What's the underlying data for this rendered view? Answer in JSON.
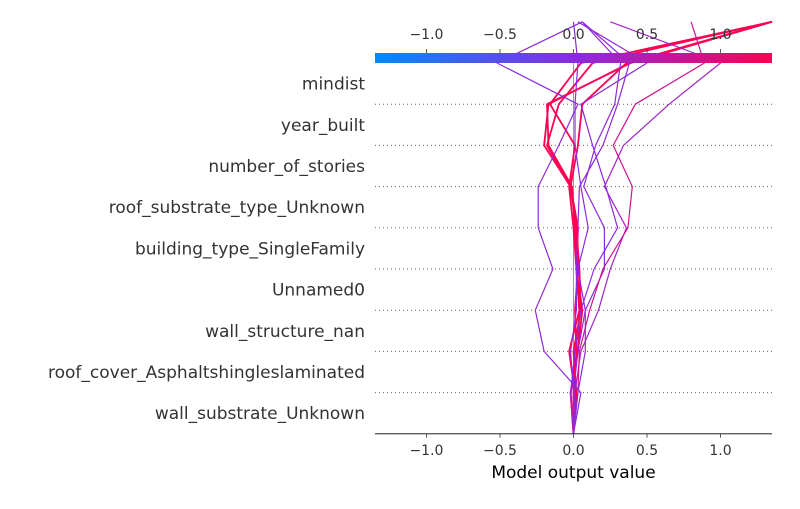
{
  "chart_data": {
    "type": "line",
    "title": "",
    "xlabel": "Model output value",
    "ylabel": "",
    "xlim": [
      -1.35,
      1.35
    ],
    "x_ticks": [
      -1.0,
      -0.5,
      0.0,
      0.5,
      1.0
    ],
    "x_tick_labels": [
      "−1.0",
      "−0.5",
      "0.0",
      "0.5",
      "1.0"
    ],
    "top_tick_labels": [
      "−1.0",
      "−0.5",
      "0.0",
      "0.5",
      "1.0"
    ],
    "colorbar": {
      "min": -1.35,
      "max": 1.35,
      "stops": [
        "#008bfb",
        "#8a2be2",
        "#ff0052"
      ]
    },
    "base_value": 0.0,
    "grid": "dotted horizontal",
    "features": [
      "mindist",
      "year_built",
      "number_of_stories",
      "roof_substrate_type_Unknown",
      "building_type_SingleFamily",
      "Unnamed0",
      "wall_structure_nan",
      "roof_cover_Asphaltshingleslaminated",
      "wall_substrate_Unknown"
    ],
    "series": [
      {
        "values": [
          0.0,
          0.01,
          -0.03,
          0.04,
          0.02,
          0.03,
          -0.02,
          0.03,
          0.06,
          0.36,
          1.35
        ]
      },
      {
        "values": [
          0.0,
          0.02,
          0.0,
          0.05,
          0.04,
          0.02,
          -0.02,
          -0.18,
          -0.1,
          0.13,
          1.35
        ]
      },
      {
        "values": [
          0.0,
          -0.02,
          0.03,
          0.06,
          0.02,
          0.03,
          -0.02,
          -0.2,
          -0.17,
          0.38,
          1.35
        ]
      },
      {
        "values": [
          0.0,
          0.0,
          0.02,
          0.01,
          0.03,
          0.01,
          -0.01,
          -0.17,
          -0.18,
          0.39,
          1.35
        ]
      },
      {
        "values": [
          0.0,
          -0.02,
          0.03,
          0.04,
          0.02,
          0.0,
          -0.03,
          0.01,
          -0.16,
          0.05,
          1.35
        ]
      },
      {
        "values": [
          0.0,
          0.01,
          0.05,
          0.17,
          0.25,
          0.36,
          0.21,
          0.34,
          0.65,
          1.0,
          0.25
        ]
      },
      {
        "values": [
          0.0,
          0.0,
          0.03,
          0.08,
          0.21,
          0.21,
          0.07,
          0.15,
          0.28,
          0.32,
          0.06
        ]
      },
      {
        "values": [
          0.0,
          0.03,
          0.04,
          0.11,
          0.2,
          0.37,
          0.4,
          0.27,
          0.42,
          0.89,
          0.8
        ]
      },
      {
        "values": [
          0.0,
          0.0,
          -0.02,
          0.02,
          0.02,
          0.03,
          0.04,
          0.2,
          0.3,
          0.38,
          0.06
        ]
      },
      {
        "values": [
          0.0,
          0.05,
          -0.2,
          -0.26,
          -0.14,
          -0.24,
          -0.24,
          -0.1,
          0.03,
          -0.52,
          0.06
        ]
      },
      {
        "values": [
          0.0,
          -0.02,
          0.01,
          0.05,
          0.14,
          0.3,
          0.22,
          0.13,
          0.05,
          0.5,
          0.03
        ]
      },
      {
        "values": [
          0.0,
          0.03,
          0.08,
          0.08,
          0.03,
          0.1,
          0.05,
          0.01,
          0.01,
          0.03,
          0.0
        ]
      }
    ]
  }
}
